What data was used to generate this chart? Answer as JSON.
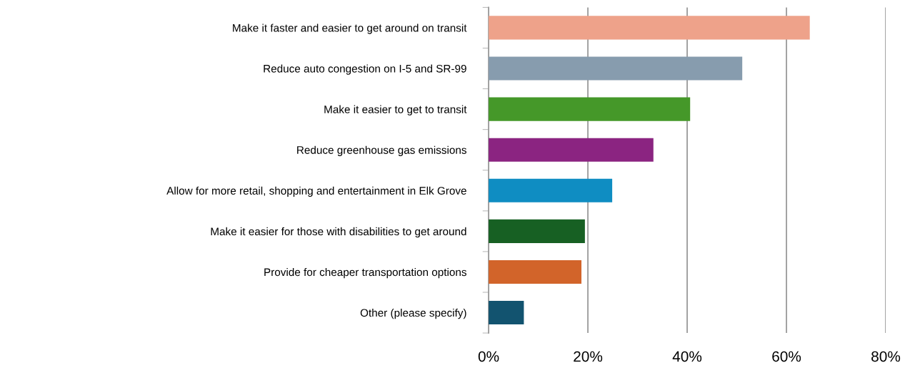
{
  "chart_data": {
    "type": "bar",
    "orientation": "horizontal",
    "categories": [
      "Make it faster and easier to get around on transit",
      "Reduce auto congestion on I-5 and SR-99",
      "Make it easier to get to transit",
      "Reduce greenhouse gas emissions",
      "Allow for more retail, shopping and entertainment in Elk Grove",
      "Make it easier for those with disabilities to get around",
      "Provide for cheaper transportation options",
      "Other (please specify)"
    ],
    "values": [
      64.7,
      51.1,
      40.6,
      33.2,
      24.9,
      19.4,
      18.7,
      7.1
    ],
    "colors": [
      "#eea28a",
      "#879cae",
      "#459829",
      "#8b2481",
      "#0f8dc2",
      "#176023",
      "#d2642a",
      "#12536f"
    ],
    "xlim": [
      0,
      80
    ],
    "xticks": [
      {
        "value": 0,
        "label": "0%"
      },
      {
        "value": 20,
        "label": "20%"
      },
      {
        "value": 40,
        "label": "40%"
      },
      {
        "value": 60,
        "label": "60%"
      },
      {
        "value": 80,
        "label": "80%"
      }
    ],
    "grid": "x",
    "legend": false
  }
}
